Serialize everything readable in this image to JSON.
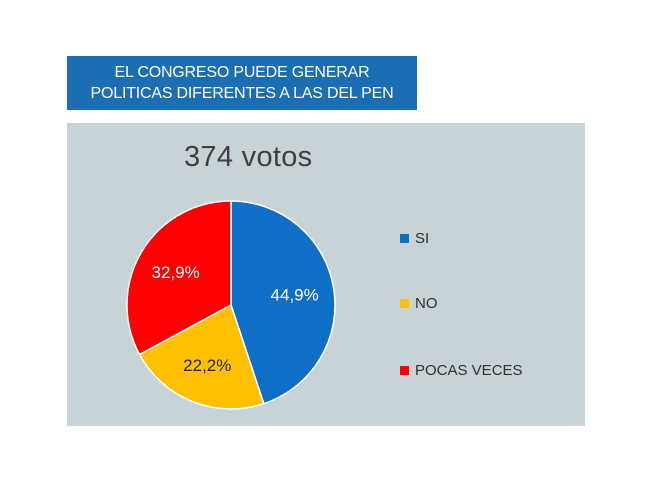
{
  "title": {
    "line1": "EL CONGRESO PUEDE GENERAR",
    "line2": "POLITICAS DIFERENTES A LAS DEL PEN"
  },
  "chart_data": {
    "type": "pie",
    "title": "EL CONGRESO PUEDE GENERAR POLITICAS DIFERENTES A LAS DEL PEN",
    "subtitle": "374 votos",
    "categories": [
      "SI",
      "NO",
      "POCAS VECES"
    ],
    "values": [
      44.9,
      22.2,
      32.9
    ],
    "data_labels": [
      "44,9%",
      "22,2%",
      "32,9%"
    ],
    "colors": [
      "#0f6fc6",
      "#ffc000",
      "#ff0000"
    ],
    "legend_position": "right"
  }
}
